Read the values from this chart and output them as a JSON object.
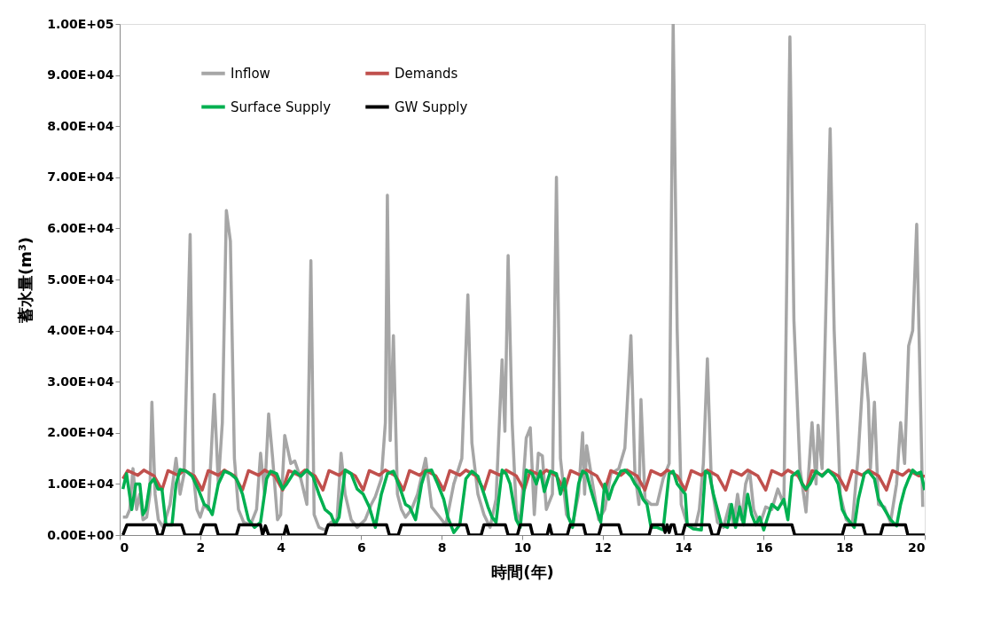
{
  "chart_data": {
    "type": "line",
    "xlabel": "時間(年)",
    "ylabel": "蓄水量(m³)",
    "xlim": [
      0,
      20
    ],
    "xticks": [
      0,
      2,
      4,
      6,
      8,
      10,
      12,
      14,
      16,
      18,
      20
    ],
    "ylim": [
      0,
      100000
    ],
    "yticks": [
      {
        "value": 0,
        "label": "0.00E+00"
      },
      {
        "value": 10000,
        "label": "1.00E+04"
      },
      {
        "value": 20000,
        "label": "2.00E+04"
      },
      {
        "value": 30000,
        "label": "3.00E+04"
      },
      {
        "value": 40000,
        "label": "4.00E+04"
      },
      {
        "value": 50000,
        "label": "5.00E+04"
      },
      {
        "value": 60000,
        "label": "6.00E+04"
      },
      {
        "value": 70000,
        "label": "7.00E+04"
      },
      {
        "value": 80000,
        "label": "8.00E+04"
      },
      {
        "value": 90000,
        "label": "9.00E+04"
      },
      {
        "value": 100000,
        "label": "1.00E+05"
      }
    ],
    "grid": false,
    "legend": "top left",
    "marker": "none",
    "line_style": "solid",
    "series": [
      {
        "name": "Inflow",
        "color": "#a6a6a6",
        "x": [
          0.08,
          0.17,
          0.25,
          0.33,
          0.42,
          0.5,
          0.58,
          0.67,
          0.75,
          0.8,
          0.88,
          0.96,
          1.08,
          1.25,
          1.4,
          1.5,
          1.6,
          1.75,
          1.83,
          1.92,
          2.0,
          2.1,
          2.2,
          2.35,
          2.45,
          2.55,
          2.65,
          2.75,
          2.85,
          2.95,
          3.08,
          3.25,
          3.4,
          3.5,
          3.6,
          3.7,
          3.8,
          3.92,
          4.0,
          4.1,
          4.25,
          4.35,
          4.5,
          4.65,
          4.75,
          4.83,
          4.95,
          5.1,
          5.25,
          5.4,
          5.5,
          5.6,
          5.75,
          5.9,
          6.1,
          6.25,
          6.35,
          6.5,
          6.6,
          6.65,
          6.72,
          6.8,
          6.9,
          7.0,
          7.1,
          7.25,
          7.4,
          7.6,
          7.75,
          7.9,
          8.1,
          8.3,
          8.5,
          8.65,
          8.75,
          8.9,
          9.05,
          9.2,
          9.35,
          9.5,
          9.57,
          9.65,
          9.75,
          9.85,
          9.95,
          10.1,
          10.2,
          10.3,
          10.4,
          10.5,
          10.6,
          10.75,
          10.85,
          10.95,
          11.1,
          11.25,
          11.4,
          11.5,
          11.55,
          11.6,
          11.75,
          11.9,
          12.05,
          12.2,
          12.4,
          12.55,
          12.7,
          12.8,
          12.9,
          12.95,
          13.05,
          13.2,
          13.35,
          13.5,
          13.65,
          13.75,
          13.85,
          13.95,
          14.1,
          14.3,
          14.4,
          14.5,
          14.6,
          14.7,
          14.85,
          15.0,
          15.15,
          15.25,
          15.35,
          15.45,
          15.55,
          15.65,
          15.75,
          15.9,
          16.05,
          16.2,
          16.35,
          16.5,
          16.65,
          16.75,
          16.9,
          17.05,
          17.2,
          17.3,
          17.35,
          17.45,
          17.65,
          17.75,
          17.9,
          18.05,
          18.2,
          18.35,
          18.5,
          18.6,
          18.65,
          18.75,
          18.85,
          19.0,
          19.15,
          19.3,
          19.4,
          19.5,
          19.6,
          19.7,
          19.8,
          19.95
        ],
        "values": [
          3500,
          3500,
          5000,
          13000,
          5000,
          8000,
          3000,
          3500,
          8000,
          26000,
          8000,
          3000,
          1500,
          6000,
          15000,
          8000,
          12000,
          58800,
          12000,
          5000,
          3500,
          6000,
          5000,
          27500,
          10000,
          22000,
          63500,
          57500,
          15000,
          5000,
          2500,
          2000,
          5000,
          16000,
          8000,
          23700,
          15000,
          3000,
          4000,
          19500,
          14000,
          14500,
          11000,
          6000,
          53700,
          4000,
          1500,
          1000,
          2500,
          3000,
          16000,
          8000,
          3000,
          1500,
          3000,
          6000,
          7500,
          11000,
          22000,
          66500,
          18500,
          39000,
          8000,
          5000,
          3500,
          5000,
          8000,
          15000,
          5500,
          4000,
          2000,
          10000,
          15000,
          47000,
          18000,
          8000,
          4000,
          1500,
          7000,
          34300,
          20300,
          54700,
          22000,
          5000,
          2000,
          19000,
          21000,
          4000,
          16000,
          15500,
          5000,
          8000,
          70000,
          15000,
          4000,
          2000,
          8000,
          20000,
          8000,
          17500,
          10000,
          3000,
          5000,
          12000,
          13000,
          17000,
          39000,
          12000,
          6000,
          26500,
          7000,
          6000,
          6000,
          11000,
          14000,
          100000,
          40000,
          6000,
          2000,
          1500,
          5000,
          14000,
          34500,
          10000,
          2500,
          1500,
          6000,
          2000,
          8000,
          3000,
          10000,
          12500,
          5000,
          2000,
          5500,
          5000,
          9000,
          6000,
          97500,
          42000,
          13000,
          4500,
          22000,
          10000,
          21500,
          13000,
          79500,
          40000,
          8000,
          3000,
          2000,
          16000,
          35500,
          26000,
          13000,
          26000,
          6000,
          5500,
          2500,
          10000,
          22000,
          14000,
          37000,
          40000,
          60800,
          5500
        ]
      },
      {
        "name": "Demands",
        "color": "#c0504d",
        "x": [
          0.08,
          0.2,
          0.45,
          0.6,
          0.85,
          1.05,
          1.2,
          1.45,
          1.6,
          1.85,
          2.05,
          2.2,
          2.45,
          2.6,
          2.85,
          3.05,
          3.2,
          3.45,
          3.6,
          3.85,
          4.05,
          4.2,
          4.45,
          4.6,
          4.85,
          5.05,
          5.2,
          5.45,
          5.6,
          5.85,
          6.05,
          6.2,
          6.45,
          6.6,
          6.85,
          7.05,
          7.2,
          7.45,
          7.6,
          7.85,
          8.05,
          8.2,
          8.45,
          8.6,
          8.85,
          9.05,
          9.2,
          9.45,
          9.6,
          9.85,
          10.05,
          10.2,
          10.45,
          10.6,
          10.85,
          11.05,
          11.2,
          11.45,
          11.6,
          11.85,
          12.05,
          12.2,
          12.45,
          12.6,
          12.85,
          13.05,
          13.2,
          13.45,
          13.6,
          13.85,
          14.05,
          14.2,
          14.45,
          14.6,
          14.85,
          15.05,
          15.2,
          15.45,
          15.6,
          15.85,
          16.05,
          16.2,
          16.45,
          16.6,
          16.85,
          17.05,
          17.2,
          17.45,
          17.6,
          17.85,
          18.05,
          18.2,
          18.45,
          18.6,
          18.85,
          19.05,
          19.2,
          19.45,
          19.6,
          19.85,
          20.0
        ],
        "values": [
          11000,
          12600,
          11700,
          12700,
          11600,
          8800,
          12600,
          11700,
          12700,
          11600,
          8800,
          12600,
          11700,
          12700,
          11600,
          8800,
          12600,
          11700,
          12700,
          11600,
          8800,
          12600,
          11700,
          12700,
          11600,
          8800,
          12600,
          11700,
          12700,
          11600,
          8800,
          12600,
          11700,
          12700,
          11600,
          8800,
          12600,
          11700,
          12700,
          11600,
          8800,
          12600,
          11700,
          12700,
          11600,
          8800,
          12600,
          11700,
          12700,
          11600,
          8800,
          12600,
          11700,
          12700,
          11600,
          8800,
          12600,
          11700,
          12700,
          11600,
          8800,
          12600,
          11700,
          12700,
          11600,
          8800,
          12600,
          11700,
          12700,
          11600,
          8800,
          12600,
          11700,
          12700,
          11600,
          8800,
          12600,
          11700,
          12700,
          11600,
          8800,
          12600,
          11700,
          12700,
          11600,
          8800,
          12600,
          11700,
          12700,
          11600,
          8800,
          12600,
          11700,
          12700,
          11600,
          8800,
          12600,
          11700,
          12700,
          11600,
          11500
        ]
      },
      {
        "name": "Surface Supply",
        "color": "#00b050",
        "x": [
          0.08,
          0.17,
          0.3,
          0.4,
          0.5,
          0.58,
          0.65,
          0.75,
          0.85,
          0.95,
          1.05,
          1.15,
          1.3,
          1.4,
          1.5,
          1.65,
          1.8,
          1.95,
          2.1,
          2.2,
          2.3,
          2.45,
          2.6,
          2.75,
          2.9,
          3.05,
          3.2,
          3.35,
          3.5,
          3.65,
          3.75,
          3.9,
          4.05,
          4.15,
          4.35,
          4.5,
          4.65,
          4.8,
          4.95,
          5.1,
          5.25,
          5.35,
          5.45,
          5.6,
          5.75,
          5.9,
          6.05,
          6.2,
          6.35,
          6.5,
          6.65,
          6.8,
          6.95,
          7.1,
          7.2,
          7.35,
          7.5,
          7.6,
          7.75,
          7.9,
          8.05,
          8.15,
          8.3,
          8.45,
          8.6,
          8.75,
          8.9,
          9.05,
          9.15,
          9.25,
          9.35,
          9.5,
          9.6,
          9.7,
          9.85,
          9.95,
          10.1,
          10.25,
          10.35,
          10.45,
          10.55,
          10.7,
          10.85,
          10.95,
          11.05,
          11.15,
          11.25,
          11.4,
          11.5,
          11.6,
          11.7,
          11.85,
          11.95,
          12.05,
          12.15,
          12.25,
          12.45,
          12.55,
          12.7,
          12.8,
          12.9,
          13.0,
          13.1,
          13.2,
          13.35,
          13.5,
          13.65,
          13.75,
          13.85,
          13.95,
          14.05,
          14.1,
          14.25,
          14.45,
          14.55,
          14.65,
          14.75,
          14.85,
          14.95,
          15.1,
          15.2,
          15.3,
          15.4,
          15.5,
          15.6,
          15.7,
          15.8,
          15.9,
          16.0,
          16.1,
          16.2,
          16.35,
          16.5,
          16.6,
          16.7,
          16.85,
          16.95,
          17.05,
          17.15,
          17.3,
          17.45,
          17.6,
          17.75,
          17.85,
          17.95,
          18.05,
          18.15,
          18.25,
          18.35,
          18.5,
          18.6,
          18.75,
          18.85,
          19.0,
          19.15,
          19.3,
          19.4,
          19.5,
          19.6,
          19.7,
          19.8,
          19.9,
          20.0
        ],
        "values": [
          9000,
          12000,
          5000,
          10000,
          10000,
          4000,
          5000,
          10000,
          11000,
          9000,
          9000,
          2000,
          2000,
          10000,
          12800,
          12500,
          11500,
          9000,
          6000,
          5500,
          4000,
          10000,
          12500,
          12000,
          11000,
          8000,
          3000,
          1500,
          2500,
          11000,
          12500,
          12000,
          9000,
          10000,
          12500,
          11500,
          12700,
          11500,
          8000,
          5000,
          4000,
          2000,
          3500,
          12700,
          12000,
          9000,
          8000,
          5500,
          1500,
          8000,
          12000,
          12500,
          9500,
          6000,
          5500,
          3000,
          10000,
          12500,
          12700,
          10000,
          7000,
          3500,
          500,
          2000,
          11000,
          12500,
          11500,
          8000,
          5500,
          3500,
          2500,
          12700,
          12000,
          10000,
          3000,
          1500,
          12700,
          12000,
          10000,
          12500,
          8500,
          12500,
          12000,
          8000,
          11000,
          3500,
          1500,
          10000,
          12500,
          12000,
          9000,
          5000,
          2500,
          10000,
          7000,
          9500,
          12500,
          12700,
          11500,
          10000,
          9000,
          7000,
          6000,
          1500,
          1500,
          1000,
          12000,
          12500,
          10000,
          9000,
          8000,
          2000,
          1200,
          1000,
          12500,
          12000,
          8000,
          5000,
          2000,
          1500,
          6000,
          1500,
          5500,
          2000,
          8000,
          4000,
          2000,
          3500,
          1000,
          3500,
          6000,
          5000,
          7000,
          3000,
          11500,
          12500,
          10000,
          9000,
          10000,
          12500,
          11500,
          12700,
          11500,
          10000,
          5000,
          3500,
          2500,
          1500,
          7000,
          12000,
          12500,
          11000,
          7000,
          5000,
          3000,
          1800,
          6000,
          9000,
          11000,
          12700,
          12000,
          12300,
          8800
        ]
      },
      {
        "name": "GW Supply",
        "color": "#000000",
        "x": [
          0.08,
          0.18,
          0.88,
          0.95,
          1.05,
          1.12,
          1.54,
          1.62,
          2.0,
          2.09,
          2.38,
          2.45,
          2.9,
          2.97,
          3.5,
          3.55,
          3.62,
          3.7,
          4.08,
          4.14,
          4.2,
          5.1,
          5.18,
          6.63,
          6.7,
          6.92,
          7.0,
          8.61,
          8.68,
          8.98,
          9.05,
          9.58,
          9.65,
          9.88,
          9.95,
          10.2,
          10.26,
          10.62,
          10.68,
          10.74,
          11.12,
          11.19,
          11.52,
          11.58,
          11.9,
          11.97,
          12.4,
          12.47,
          13.15,
          13.22,
          13.5,
          13.55,
          13.6,
          13.65,
          13.7,
          13.77,
          13.83,
          13.98,
          14.05,
          14.65,
          14.72,
          14.86,
          14.93,
          16.7,
          16.77,
          17.95,
          18.02,
          18.46,
          18.53,
          18.9,
          18.97,
          19.52,
          19.58,
          20.0
        ],
        "values": [
          0,
          2000,
          2000,
          0,
          0,
          2000,
          2000,
          0,
          0,
          2000,
          2000,
          0,
          0,
          2000,
          2000,
          0,
          1800,
          0,
          0,
          1800,
          0,
          0,
          2000,
          2000,
          0,
          0,
          2000,
          2000,
          0,
          0,
          2000,
          2000,
          0,
          0,
          2000,
          2000,
          0,
          0,
          2000,
          0,
          0,
          2000,
          2000,
          0,
          0,
          2000,
          2000,
          0,
          0,
          2000,
          2000,
          500,
          2000,
          500,
          2000,
          2000,
          0,
          0,
          2000,
          2000,
          0,
          0,
          2000,
          2000,
          0,
          0,
          2000,
          2000,
          0,
          0,
          2000,
          2000,
          0,
          0
        ]
      }
    ]
  }
}
